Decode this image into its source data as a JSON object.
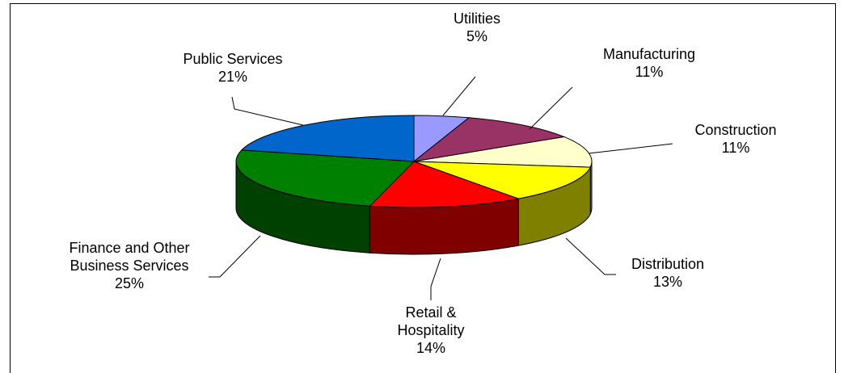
{
  "chart_data": {
    "type": "pie3d",
    "categories": [
      "Utilities",
      "Manufacturing",
      "Construction",
      "Distribution",
      "Retail & Hospitality",
      "Finance and Other Business Services",
      "Public Services"
    ],
    "values": [
      5,
      11,
      11,
      13,
      14,
      25,
      21
    ],
    "value_labels": [
      "5%",
      "11%",
      "11%",
      "13%",
      "14%",
      "25%",
      "21%"
    ],
    "colors": [
      "#9999ff",
      "#993366",
      "#ffffcc",
      "#ffff00",
      "#ff0000",
      "#008000",
      "#0066cc"
    ]
  }
}
